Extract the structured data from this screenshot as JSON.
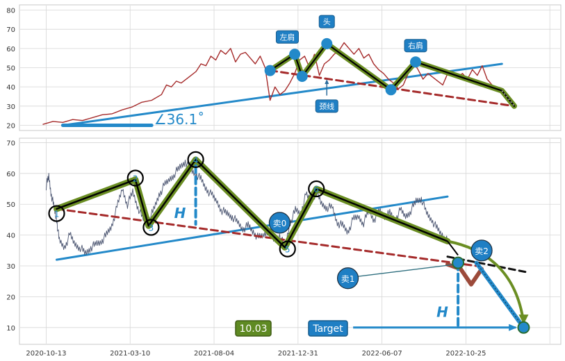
{
  "colors": {
    "bg": "#ffffff",
    "grid": "#d6d6d6",
    "frame": "#c8c8c8",
    "price_top": "#a52a2a",
    "price_bottom": "#4a5470",
    "trend": "#2389c9",
    "neckline": "#a52a2a",
    "pattern_band": "#6b8e23",
    "pattern_line": "#000000",
    "marker": "#2389c9",
    "label_bg": "#1f7fc4",
    "label_text": "#ffffff",
    "value_box_bg": "#5f8a23",
    "value_box_border": "#3d5a12",
    "ext_line": "#111111",
    "angle_text": "#2389c9",
    "h_text": "#2389c9"
  },
  "chart_data": [
    {
      "type": "line",
      "panel": "top",
      "ylim": [
        18,
        82
      ],
      "yticks": [
        20,
        30,
        40,
        50,
        60,
        70,
        80
      ],
      "xlim": [
        0,
        100
      ],
      "grid": true,
      "price_series": [
        [
          0,
          20.5
        ],
        [
          2,
          22
        ],
        [
          4,
          21.5
        ],
        [
          6,
          23
        ],
        [
          8,
          22.5
        ],
        [
          10,
          24
        ],
        [
          12,
          25.5
        ],
        [
          14,
          26
        ],
        [
          16,
          28
        ],
        [
          18,
          29.5
        ],
        [
          20,
          32
        ],
        [
          22,
          33
        ],
        [
          24,
          36
        ],
        [
          25,
          41
        ],
        [
          26,
          40
        ],
        [
          27,
          43
        ],
        [
          28,
          42
        ],
        [
          30,
          46
        ],
        [
          31,
          48
        ],
        [
          32,
          52
        ],
        [
          33,
          51
        ],
        [
          34,
          56
        ],
        [
          35,
          54
        ],
        [
          36,
          59
        ],
        [
          37,
          57
        ],
        [
          38,
          60
        ],
        [
          39,
          53
        ],
        [
          40,
          57
        ],
        [
          41,
          58
        ],
        [
          42,
          55
        ],
        [
          43,
          52
        ],
        [
          44,
          56
        ],
        [
          45,
          50
        ],
        [
          46,
          33
        ],
        [
          47,
          40
        ],
        [
          48,
          36
        ],
        [
          49,
          38
        ],
        [
          50,
          42
        ],
        [
          51,
          47
        ],
        [
          52,
          54
        ],
        [
          53,
          56
        ],
        [
          54,
          50
        ],
        [
          55,
          57
        ],
        [
          56,
          46
        ],
        [
          57,
          52
        ],
        [
          58,
          54
        ],
        [
          59,
          57
        ],
        [
          60,
          59
        ],
        [
          61,
          63
        ],
        [
          62,
          60
        ],
        [
          63,
          57
        ],
        [
          64,
          60
        ],
        [
          65,
          55
        ],
        [
          66,
          57
        ],
        [
          67,
          52
        ],
        [
          68,
          49
        ],
        [
          69,
          47
        ],
        [
          70,
          44
        ],
        [
          71,
          42
        ],
        [
          72,
          39
        ],
        [
          73,
          41
        ],
        [
          74,
          47
        ],
        [
          75,
          53
        ],
        [
          76,
          49
        ],
        [
          77,
          44
        ],
        [
          78,
          47
        ],
        [
          79,
          45
        ],
        [
          80,
          43
        ],
        [
          81,
          41
        ],
        [
          82,
          47
        ],
        [
          83,
          48
        ],
        [
          84,
          45
        ],
        [
          85,
          47
        ],
        [
          86,
          44
        ],
        [
          87,
          49
        ],
        [
          88,
          46
        ],
        [
          89,
          51
        ],
        [
          90,
          44
        ],
        [
          91,
          41
        ],
        [
          92,
          39
        ],
        [
          93,
          38
        ]
      ],
      "pattern_points": [
        [
          46,
          48.5
        ],
        [
          51,
          57
        ],
        [
          52.5,
          45.5
        ],
        [
          57.5,
          62.5
        ],
        [
          70.5,
          38.5
        ],
        [
          75.5,
          53
        ],
        [
          93,
          38
        ],
        [
          95.5,
          30
        ]
      ],
      "trend_line": [
        [
          4,
          20
        ],
        [
          93,
          52
        ]
      ],
      "neckline": [
        [
          46,
          48.5
        ],
        [
          95.5,
          30
        ]
      ],
      "baseline_line": [
        [
          4,
          20
        ],
        [
          22,
          20
        ]
      ],
      "markers": [
        [
          46,
          48.5
        ],
        [
          51,
          57
        ],
        [
          52.5,
          45.5
        ],
        [
          57.5,
          62.5
        ],
        [
          70.5,
          38.5
        ],
        [
          75.5,
          53
        ]
      ],
      "annotations": [
        {
          "text": "左肩",
          "x": 49.5,
          "y": 66
        },
        {
          "text": "头",
          "x": 57.5,
          "y": 74
        },
        {
          "text": "右肩",
          "x": 75.5,
          "y": 61.5
        },
        {
          "text": "颈线",
          "x": 57.5,
          "y": 30
        }
      ],
      "angle_label": "∠36.1˚"
    },
    {
      "type": "line",
      "panel": "bottom",
      "ylim": [
        5,
        71
      ],
      "yticks": [
        10,
        20,
        30,
        40,
        50,
        60,
        70
      ],
      "xlim": [
        0,
        100
      ],
      "grid": true,
      "xtick_labels": [
        "2020-10-13",
        "2021-03-10",
        "2021-08-04",
        "2021-12-31",
        "2022-06-07",
        "2022-10-25"
      ],
      "xtick_positions": [
        3.5,
        19.5,
        35.5,
        51.5,
        67.5,
        83.5
      ],
      "price_series": [
        [
          3.5,
          56
        ],
        [
          4,
          59
        ],
        [
          4.5,
          53
        ],
        [
          5,
          49
        ],
        [
          5.5,
          45
        ],
        [
          6,
          38
        ],
        [
          7,
          36
        ],
        [
          8,
          40
        ],
        [
          9,
          37
        ],
        [
          10,
          36
        ],
        [
          11,
          34
        ],
        [
          12,
          36
        ],
        [
          13,
          37
        ],
        [
          14,
          38
        ],
        [
          15,
          40
        ],
        [
          16,
          43
        ],
        [
          17,
          49
        ],
        [
          18,
          55
        ],
        [
          19,
          50
        ],
        [
          20,
          54
        ],
        [
          21,
          49
        ],
        [
          22,
          45
        ],
        [
          23,
          45
        ],
        [
          24,
          48
        ],
        [
          25,
          53
        ],
        [
          26,
          56
        ],
        [
          27,
          58
        ],
        [
          28,
          60
        ],
        [
          29,
          62
        ],
        [
          30,
          64
        ],
        [
          31,
          61
        ],
        [
          32,
          60
        ],
        [
          33,
          58
        ],
        [
          34,
          55
        ],
        [
          35,
          53
        ],
        [
          36,
          51
        ],
        [
          37,
          48
        ],
        [
          38,
          47
        ],
        [
          39,
          46
        ],
        [
          40,
          44
        ],
        [
          41,
          42
        ],
        [
          42,
          43
        ],
        [
          43,
          41
        ],
        [
          44,
          39
        ],
        [
          45,
          40
        ],
        [
          46,
          42
        ],
        [
          47,
          38
        ],
        [
          48,
          40
        ],
        [
          49,
          36
        ],
        [
          50,
          44
        ],
        [
          51,
          48
        ],
        [
          52,
          47
        ],
        [
          53,
          53
        ],
        [
          54,
          51
        ],
        [
          55,
          54
        ],
        [
          56,
          50
        ],
        [
          57,
          49
        ],
        [
          58,
          49
        ],
        [
          59,
          44
        ],
        [
          60,
          43
        ],
        [
          61,
          41
        ],
        [
          62,
          45
        ],
        [
          63,
          46
        ],
        [
          64,
          44
        ],
        [
          65,
          48
        ],
        [
          66,
          45
        ],
        [
          67,
          48
        ],
        [
          68,
          46
        ],
        [
          69,
          47
        ],
        [
          70,
          45
        ],
        [
          71,
          48
        ],
        [
          72,
          46
        ],
        [
          73,
          48
        ],
        [
          74,
          51
        ],
        [
          75,
          52
        ],
        [
          76,
          47
        ],
        [
          77,
          45
        ],
        [
          78,
          42
        ],
        [
          79,
          40
        ],
        [
          80,
          38
        ]
      ],
      "pattern_points": [
        [
          5.5,
          48.5
        ],
        [
          20.5,
          58
        ],
        [
          23,
          43
        ],
        [
          32,
          64.5
        ],
        [
          49,
          36
        ],
        [
          55,
          55
        ],
        [
          80,
          38
        ],
        [
          94,
          10
        ]
      ],
      "trend_line": [
        [
          5.5,
          32
        ],
        [
          80,
          52.5
        ]
      ],
      "neckline": [
        [
          5.5,
          48.5
        ],
        [
          85.5,
          30
        ]
      ],
      "ext_line": [
        [
          80,
          33
        ],
        [
          95,
          28
        ]
      ],
      "sell1_path": [
        [
          80,
          30.5
        ],
        [
          82.5,
          29
        ],
        [
          84.5,
          24
        ],
        [
          86.5,
          29
        ]
      ],
      "target_drop": [
        [
          85.5,
          31
        ],
        [
          94.5,
          10
        ]
      ],
      "head_h": [
        [
          32,
          62.5
        ],
        [
          32,
          43.5
        ]
      ],
      "target_h": [
        [
          82,
          31
        ],
        [
          82,
          10
        ]
      ],
      "target_arrow": [
        [
          62,
          10
        ],
        [
          93,
          10
        ]
      ],
      "points": [
        {
          "label": "1",
          "x": 5.5,
          "y": 47
        },
        {
          "label": "2",
          "x": 20.5,
          "y": 58.5
        },
        {
          "label": "3",
          "x": 23.5,
          "y": 42.5
        },
        {
          "label": "4",
          "x": 32,
          "y": 64.5
        },
        {
          "label": "5",
          "x": 49.5,
          "y": 35.5
        },
        {
          "label": "6",
          "x": 55,
          "y": 55
        }
      ],
      "sell_markers": [
        {
          "label": "卖0",
          "x": 48,
          "y": 44
        },
        {
          "label": "卖1",
          "x": 61,
          "y": 26
        },
        {
          "label": "卖2",
          "x": 86.5,
          "y": 35
        }
      ],
      "small_markers": [
        [
          82,
          31
        ],
        [
          94.5,
          10
        ]
      ],
      "h_labels": [
        {
          "text": "H",
          "x": 29,
          "y": 45.5
        },
        {
          "text": "H",
          "x": 79,
          "y": 13.5
        }
      ],
      "value_box": "10.03",
      "target_label": "Target"
    }
  ]
}
